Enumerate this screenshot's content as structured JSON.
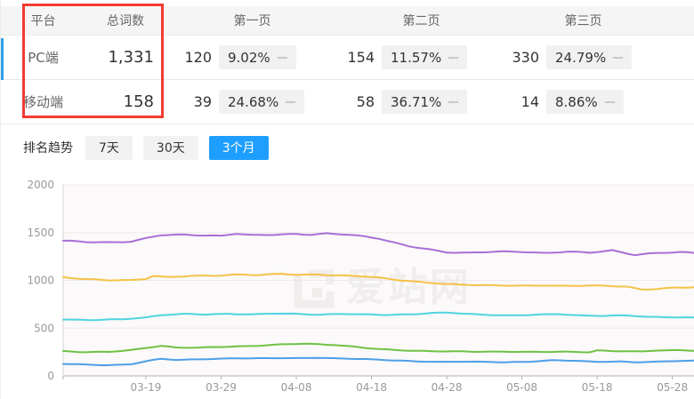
{
  "table": {
    "headers": [
      "平台",
      "总词数",
      "第一页",
      "第二页",
      "第三页"
    ],
    "rows": [
      {
        "platform": "PC端",
        "total": "1,331",
        "pages": [
          {
            "count": "120",
            "percent": "9.02%"
          },
          {
            "count": "154",
            "percent": "11.57%"
          },
          {
            "count": "330",
            "percent": "24.79%"
          }
        ]
      },
      {
        "platform": "移动端",
        "total": "158",
        "pages": [
          {
            "count": "39",
            "percent": "24.68%"
          },
          {
            "count": "58",
            "percent": "36.71%"
          },
          {
            "count": "14",
            "percent": "8.86%"
          }
        ]
      }
    ]
  },
  "trend": {
    "label": "排名趋势",
    "tabs": [
      {
        "label": "7天",
        "active": false
      },
      {
        "label": "30天",
        "active": false
      },
      {
        "label": "3个月",
        "active": true
      }
    ]
  },
  "watermark_text": "爱站网",
  "colors": {
    "active_tab_blue": "#1e9fff",
    "annotation_red": "#f43b32",
    "row_marker_blue": "#2d9fe8"
  },
  "chart_data": {
    "type": "line",
    "title": "排名趋势（3个月）",
    "xlabel": "",
    "ylabel": "",
    "ylim": [
      0,
      2000
    ],
    "y_ticks": [
      0,
      500,
      1000,
      1500,
      2000
    ],
    "grid": true,
    "legend": "none",
    "x_day_range": [
      0,
      84
    ],
    "x_tick_days": [
      11,
      21,
      31,
      41,
      51,
      61,
      71,
      81
    ],
    "x_tick_labels": [
      "03-19",
      "03-29",
      "04-08",
      "04-18",
      "04-28",
      "05-08",
      "05-18",
      "05-28"
    ],
    "series": [
      {
        "name": "series-purple",
        "color": "#a76fd6",
        "wiggle": 6,
        "points": [
          [
            0,
            1415
          ],
          [
            3,
            1400
          ],
          [
            6,
            1398
          ],
          [
            9,
            1408
          ],
          [
            11,
            1440
          ],
          [
            13,
            1472
          ],
          [
            16,
            1478
          ],
          [
            19,
            1472
          ],
          [
            21,
            1468
          ],
          [
            23,
            1488
          ],
          [
            25,
            1472
          ],
          [
            28,
            1478
          ],
          [
            31,
            1488
          ],
          [
            33,
            1478
          ],
          [
            35,
            1488
          ],
          [
            38,
            1478
          ],
          [
            40,
            1462
          ],
          [
            42,
            1440
          ],
          [
            44,
            1395
          ],
          [
            46,
            1355
          ],
          [
            48,
            1330
          ],
          [
            51,
            1295
          ],
          [
            54,
            1290
          ],
          [
            57,
            1298
          ],
          [
            61,
            1300
          ],
          [
            64,
            1288
          ],
          [
            67,
            1300
          ],
          [
            70,
            1288
          ],
          [
            73,
            1315
          ],
          [
            76,
            1268
          ],
          [
            79,
            1285
          ],
          [
            82,
            1295
          ],
          [
            84,
            1288
          ]
        ]
      },
      {
        "name": "series-yellow",
        "color": "#f3c247",
        "wiggle": 5,
        "points": [
          [
            0,
            1035
          ],
          [
            3,
            1012
          ],
          [
            6,
            1000
          ],
          [
            9,
            1003
          ],
          [
            11,
            1018
          ],
          [
            12,
            1048
          ],
          [
            14,
            1032
          ],
          [
            17,
            1045
          ],
          [
            20,
            1050
          ],
          [
            23,
            1062
          ],
          [
            26,
            1055
          ],
          [
            29,
            1068
          ],
          [
            31,
            1060
          ],
          [
            34,
            1062
          ],
          [
            37,
            1048
          ],
          [
            40,
            1042
          ],
          [
            42,
            1030
          ],
          [
            45,
            1000
          ],
          [
            48,
            978
          ],
          [
            51,
            960
          ],
          [
            54,
            955
          ],
          [
            57,
            948
          ],
          [
            61,
            942
          ],
          [
            64,
            948
          ],
          [
            67,
            943
          ],
          [
            70,
            945
          ],
          [
            73,
            940
          ],
          [
            75,
            935
          ],
          [
            77,
            905
          ],
          [
            79,
            912
          ],
          [
            81,
            920
          ],
          [
            84,
            928
          ]
        ]
      },
      {
        "name": "series-cyan",
        "color": "#4fd3e0",
        "wiggle": 4,
        "points": [
          [
            0,
            592
          ],
          [
            4,
            585
          ],
          [
            8,
            592
          ],
          [
            11,
            612
          ],
          [
            13,
            638
          ],
          [
            16,
            648
          ],
          [
            19,
            642
          ],
          [
            22,
            650
          ],
          [
            25,
            645
          ],
          [
            28,
            652
          ],
          [
            31,
            648
          ],
          [
            34,
            642
          ],
          [
            37,
            650
          ],
          [
            40,
            642
          ],
          [
            43,
            638
          ],
          [
            46,
            645
          ],
          [
            49,
            658
          ],
          [
            51,
            662
          ],
          [
            54,
            648
          ],
          [
            57,
            638
          ],
          [
            60,
            632
          ],
          [
            63,
            640
          ],
          [
            66,
            648
          ],
          [
            69,
            632
          ],
          [
            72,
            628
          ],
          [
            75,
            632
          ],
          [
            78,
            618
          ],
          [
            81,
            615
          ],
          [
            84,
            608
          ]
        ]
      },
      {
        "name": "series-green",
        "color": "#6ec244",
        "wiggle": 4,
        "points": [
          [
            0,
            258
          ],
          [
            3,
            250
          ],
          [
            6,
            253
          ],
          [
            9,
            268
          ],
          [
            11,
            292
          ],
          [
            13,
            315
          ],
          [
            15,
            298
          ],
          [
            18,
            296
          ],
          [
            21,
            302
          ],
          [
            24,
            310
          ],
          [
            27,
            322
          ],
          [
            30,
            332
          ],
          [
            32,
            336
          ],
          [
            34,
            330
          ],
          [
            36,
            325
          ],
          [
            38,
            312
          ],
          [
            40,
            295
          ],
          [
            42,
            280
          ],
          [
            44,
            270
          ],
          [
            47,
            263
          ],
          [
            51,
            257
          ],
          [
            55,
            252
          ],
          [
            59,
            255
          ],
          [
            63,
            250
          ],
          [
            67,
            252
          ],
          [
            70,
            250
          ],
          [
            71,
            268
          ],
          [
            73,
            260
          ],
          [
            75,
            257
          ],
          [
            77,
            254
          ],
          [
            79,
            268
          ],
          [
            82,
            270
          ],
          [
            84,
            264
          ]
        ]
      },
      {
        "name": "series-blue",
        "color": "#4d9fe8",
        "wiggle": 3,
        "points": [
          [
            0,
            125
          ],
          [
            3,
            118
          ],
          [
            6,
            113
          ],
          [
            9,
            122
          ],
          [
            11,
            152
          ],
          [
            13,
            178
          ],
          [
            15,
            168
          ],
          [
            17,
            172
          ],
          [
            20,
            178
          ],
          [
            23,
            182
          ],
          [
            26,
            185
          ],
          [
            29,
            188
          ],
          [
            31,
            185
          ],
          [
            34,
            188
          ],
          [
            37,
            182
          ],
          [
            40,
            178
          ],
          [
            42,
            170
          ],
          [
            44,
            160
          ],
          [
            47,
            152
          ],
          [
            50,
            148
          ],
          [
            53,
            150
          ],
          [
            56,
            146
          ],
          [
            59,
            143
          ],
          [
            62,
            150
          ],
          [
            65,
            163
          ],
          [
            68,
            158
          ],
          [
            71,
            148
          ],
          [
            74,
            152
          ],
          [
            76,
            142
          ],
          [
            79,
            148
          ],
          [
            82,
            158
          ],
          [
            84,
            160
          ]
        ]
      }
    ]
  }
}
